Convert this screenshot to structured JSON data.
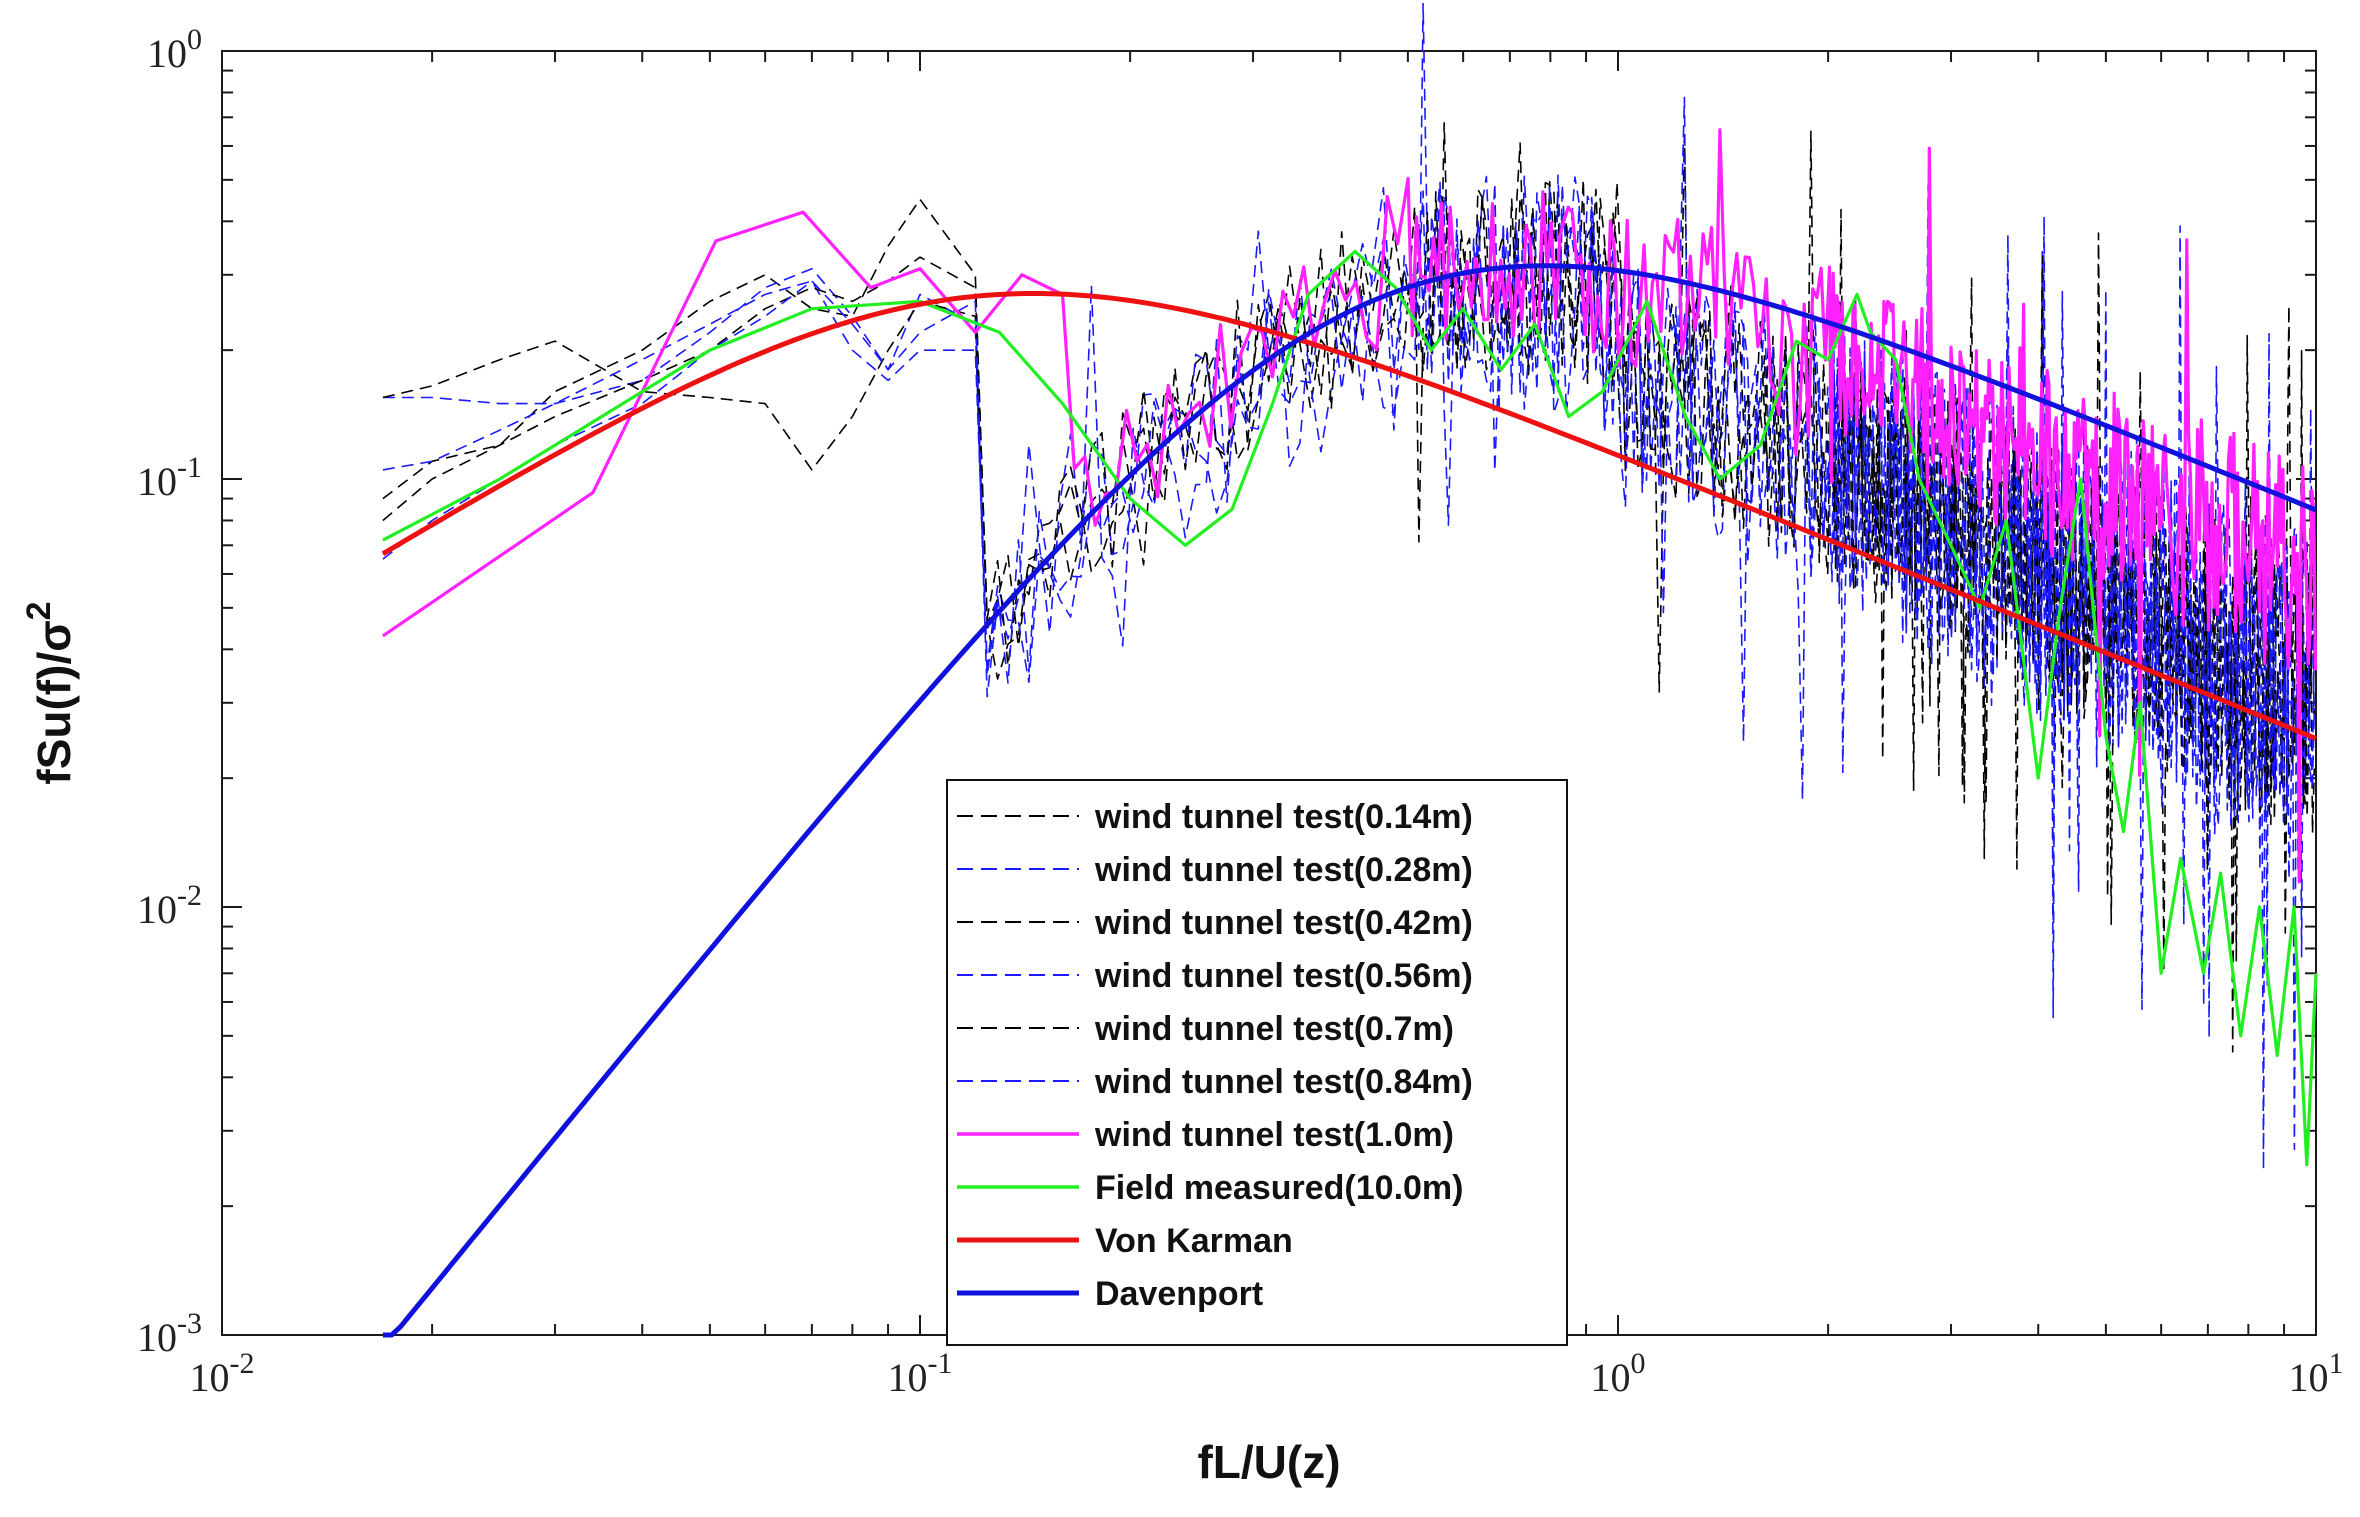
{
  "chart_data": {
    "type": "line",
    "scale": "log-log",
    "title": "",
    "xlabel": "fL/U(z)",
    "ylabel": "fSu(f)/σ",
    "ylabel_superscript": "2",
    "xlim": [
      0.01,
      10
    ],
    "ylim": [
      0.001,
      1
    ],
    "x_ticks": [
      {
        "value": 0.01,
        "base": "10",
        "exp": "-2"
      },
      {
        "value": 0.1,
        "base": "10",
        "exp": "-1"
      },
      {
        "value": 1,
        "base": "10",
        "exp": "0"
      },
      {
        "value": 10,
        "base": "10",
        "exp": "1"
      }
    ],
    "y_ticks": [
      {
        "value": 0.001,
        "base": "10",
        "exp": "-3"
      },
      {
        "value": 0.01,
        "base": "10",
        "exp": "-2"
      },
      {
        "value": 0.1,
        "base": "10",
        "exp": "-1"
      },
      {
        "value": 1,
        "base": "10",
        "exp": "0"
      }
    ],
    "grid": false,
    "legend_position": "bottom-center",
    "series": [
      {
        "name": "wind tunnel test(0.14m)",
        "color": "#000000",
        "style": "dashed",
        "kind": "noisy",
        "seed": 11,
        "base": "measured",
        "shift": 1.0,
        "noise": 0.17,
        "tail": [
          0.6,
          0.55
        ],
        "x": [
          0.017,
          0.02,
          0.025,
          0.03,
          0.04,
          0.05,
          0.06,
          0.07,
          0.08,
          0.09,
          0.1,
          0.12
        ],
        "y": [
          0.09,
          0.11,
          0.12,
          0.16,
          0.2,
          0.26,
          0.3,
          0.25,
          0.24,
          0.35,
          0.45,
          0.3
        ]
      },
      {
        "name": "wind tunnel test(0.28m)",
        "color": "#1a1aff",
        "style": "dashed",
        "kind": "noisy",
        "seed": 23,
        "base": "measured",
        "shift": 0.95,
        "noise": 0.2,
        "tail": [
          0.65,
          0.55
        ],
        "x": [
          0.017,
          0.02,
          0.025,
          0.03,
          0.04,
          0.05,
          0.06,
          0.07,
          0.08,
          0.09,
          0.1,
          0.12
        ],
        "y": [
          0.155,
          0.155,
          0.15,
          0.15,
          0.17,
          0.22,
          0.28,
          0.31,
          0.24,
          0.18,
          0.27,
          0.23
        ]
      },
      {
        "name": "wind tunnel test(0.42m)",
        "color": "#000000",
        "style": "dashed",
        "kind": "noisy",
        "seed": 37,
        "base": "measured",
        "shift": 1.0,
        "noise": 0.18,
        "tail": [
          0.6,
          0.5
        ],
        "x": [
          0.017,
          0.02,
          0.025,
          0.03,
          0.04,
          0.05,
          0.06,
          0.07,
          0.08,
          0.09,
          0.1,
          0.12
        ],
        "y": [
          0.155,
          0.165,
          0.19,
          0.21,
          0.16,
          0.155,
          0.15,
          0.105,
          0.14,
          0.2,
          0.26,
          0.24
        ]
      },
      {
        "name": "wind tunnel test(0.56m)",
        "color": "#1a1aff",
        "style": "dashed",
        "kind": "noisy",
        "seed": 49,
        "base": "measured",
        "shift": 0.9,
        "noise": 0.22,
        "tail": [
          0.65,
          0.5
        ],
        "x": [
          0.017,
          0.02,
          0.025,
          0.03,
          0.04,
          0.05,
          0.06,
          0.07,
          0.08,
          0.09,
          0.1,
          0.12
        ],
        "y": [
          0.105,
          0.11,
          0.13,
          0.15,
          0.19,
          0.23,
          0.27,
          0.29,
          0.2,
          0.17,
          0.2,
          0.2
        ]
      },
      {
        "name": "wind tunnel test(0.7m)",
        "color": "#000000",
        "style": "dashed",
        "kind": "noisy",
        "seed": 61,
        "base": "measured",
        "shift": 1.0,
        "noise": 0.18,
        "tail": [
          0.6,
          0.5
        ],
        "x": [
          0.017,
          0.02,
          0.025,
          0.03,
          0.04,
          0.05,
          0.06,
          0.07,
          0.08,
          0.09,
          0.1,
          0.12
        ],
        "y": [
          0.08,
          0.1,
          0.12,
          0.14,
          0.17,
          0.2,
          0.25,
          0.28,
          0.26,
          0.29,
          0.33,
          0.28
        ]
      },
      {
        "name": "wind tunnel test(0.84m)",
        "color": "#1a1aff",
        "style": "dashed",
        "kind": "noisy",
        "seed": 77,
        "base": "measured",
        "shift": 0.92,
        "noise": 0.22,
        "tail": [
          0.65,
          0.55
        ],
        "x": [
          0.017,
          0.02,
          0.025,
          0.03,
          0.04,
          0.05,
          0.06,
          0.07,
          0.08,
          0.09,
          0.1,
          0.12
        ],
        "y": [
          0.065,
          0.08,
          0.1,
          0.12,
          0.15,
          0.2,
          0.24,
          0.29,
          0.23,
          0.18,
          0.22,
          0.26
        ]
      },
      {
        "name": "wind tunnel test(1.0m)",
        "color": "#ff22ff",
        "style": "solid",
        "kind": "noisy",
        "seed": 91,
        "base": "measured",
        "shift": 1.05,
        "noise": 0.14,
        "tail": [
          0.95,
          0.95
        ],
        "x": [
          0.017,
          0.034,
          0.051,
          0.068,
          0.085,
          0.1,
          0.12,
          0.14,
          0.16
        ],
        "y": [
          0.043,
          0.093,
          0.36,
          0.42,
          0.28,
          0.31,
          0.22,
          0.3,
          0.27
        ]
      },
      {
        "name": "Field measured(10.0m)",
        "color": "#22ee22",
        "style": "solid",
        "kind": "points",
        "x": [
          0.017,
          0.025,
          0.035,
          0.05,
          0.07,
          0.1,
          0.13,
          0.16,
          0.2,
          0.24,
          0.28,
          0.32,
          0.36,
          0.42,
          0.48,
          0.54,
          0.6,
          0.68,
          0.76,
          0.85,
          0.95,
          1.1,
          1.25,
          1.4,
          1.6,
          1.8,
          2.0,
          2.2,
          2.3,
          2.5,
          2.7,
          3.0,
          3.3,
          3.6,
          4.0,
          4.3,
          4.6,
          5.0,
          5.3,
          5.6,
          6.0,
          6.4,
          6.9,
          7.3,
          7.8,
          8.3,
          8.8,
          9.3,
          9.7,
          10.0
        ],
        "y": [
          0.072,
          0.1,
          0.14,
          0.2,
          0.25,
          0.26,
          0.22,
          0.15,
          0.09,
          0.07,
          0.085,
          0.15,
          0.27,
          0.34,
          0.28,
          0.2,
          0.25,
          0.18,
          0.23,
          0.14,
          0.16,
          0.26,
          0.14,
          0.1,
          0.12,
          0.21,
          0.19,
          0.27,
          0.22,
          0.19,
          0.1,
          0.07,
          0.05,
          0.08,
          0.02,
          0.05,
          0.1,
          0.025,
          0.015,
          0.03,
          0.007,
          0.013,
          0.007,
          0.012,
          0.005,
          0.01,
          0.0045,
          0.01,
          0.0025,
          0.007
        ]
      },
      {
        "name": "Von Karman",
        "color": "#ee1111",
        "style": "solid",
        "kind": "formula",
        "formula": "vonkarman",
        "x_range": [
          0.017,
          10
        ]
      },
      {
        "name": "Davenport",
        "color": "#1111dd",
        "style": "solid",
        "kind": "formula",
        "formula": "davenport",
        "x_range": [
          0.017,
          10
        ]
      }
    ]
  }
}
